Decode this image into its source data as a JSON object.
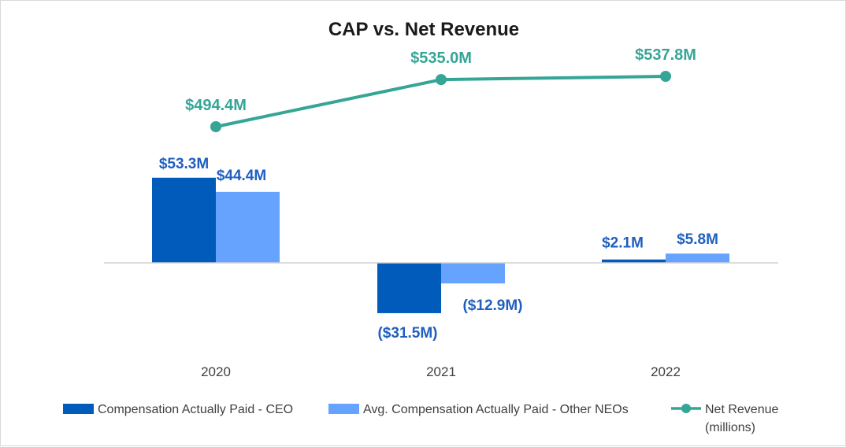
{
  "chart_data": {
    "type": "bar",
    "title": "CAP vs. Net Revenue",
    "categories": [
      "2020",
      "2021",
      "2022"
    ],
    "series": [
      {
        "name": "Compensation Actually Paid - CEO",
        "kind": "bar",
        "color": "#005bbb",
        "values": [
          53.3,
          -31.5,
          2.1
        ],
        "labels": [
          "$53.3M",
          "($31.5M)",
          "$2.1M"
        ]
      },
      {
        "name": "Avg. Compensation Actually Paid - Other NEOs",
        "kind": "bar",
        "color": "#66a3ff",
        "values": [
          44.4,
          -12.9,
          5.8
        ],
        "labels": [
          "$44.4M",
          "($12.9M)",
          "$5.8M"
        ]
      },
      {
        "name": "Net Revenue",
        "name_line2": "(millions)",
        "kind": "line",
        "color": "#35a596",
        "values": [
          494.4,
          535.0,
          537.8
        ],
        "labels": [
          "$494.4M",
          "$535.0M",
          "$537.8M"
        ]
      }
    ],
    "bar_axis": {
      "ylim": [
        -55,
        55
      ]
    },
    "line_axis": {
      "ylim": [
        330,
        560
      ]
    },
    "legend_position": "bottom"
  }
}
